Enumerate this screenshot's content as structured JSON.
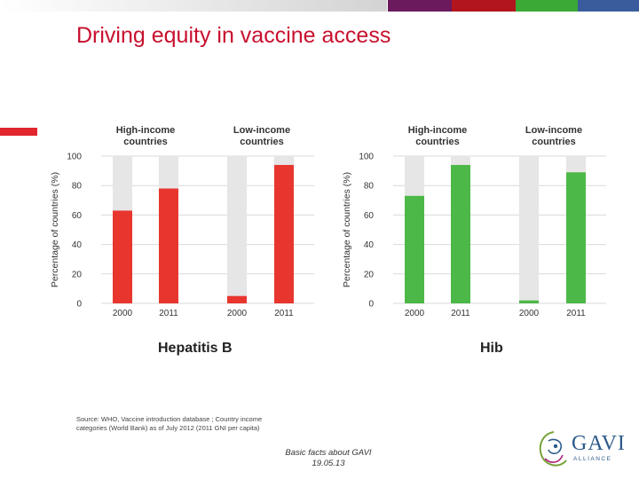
{
  "title": "Driving equity in vaccine access",
  "colors": {
    "title": "#c8102e",
    "accent_red": "#e2262d",
    "purple": "#6b1a5e",
    "dark_red": "#b3151e",
    "green": "#3aa935",
    "blue": "#3a5c9c",
    "bar_background": "#e6e6e6"
  },
  "charts": [
    {
      "name": "Hepatitis B",
      "color": "#e8362f"
    },
    {
      "name": "Hib",
      "color": "#4cb847"
    }
  ],
  "chart_data": [
    {
      "type": "bar",
      "groups": [
        "High-income countries",
        "Low-income countries"
      ],
      "categories": [
        "2000",
        "2011",
        "2000",
        "2011"
      ],
      "values": [
        63,
        78,
        5,
        94
      ],
      "ylabel": "Percentage of countries (%)",
      "ylim": [
        0,
        100
      ],
      "yticks": [
        0,
        20,
        40,
        60,
        80,
        100
      ],
      "caption": "Hepatitis B",
      "background_bars": true
    },
    {
      "type": "bar",
      "groups": [
        "High-income countries",
        "Low-income countries"
      ],
      "categories": [
        "2000",
        "2011",
        "2000",
        "2011"
      ],
      "values": [
        73,
        94,
        2,
        89
      ],
      "ylabel": "Percentage of countries (%)",
      "ylim": [
        0,
        100
      ],
      "yticks": [
        0,
        20,
        40,
        60,
        80,
        100
      ],
      "caption": "Hib",
      "background_bars": true
    }
  ],
  "source": "Source: WHO, Vaccine introduction database ; Country income categories (World Bank) as of July 2012 (2011 GNI per capita)",
  "footer": {
    "line1": "Basic facts about GAVI",
    "line2": "19.05.13"
  },
  "logo": {
    "text": "GAVI",
    "subtext": "ALLIANCE"
  }
}
